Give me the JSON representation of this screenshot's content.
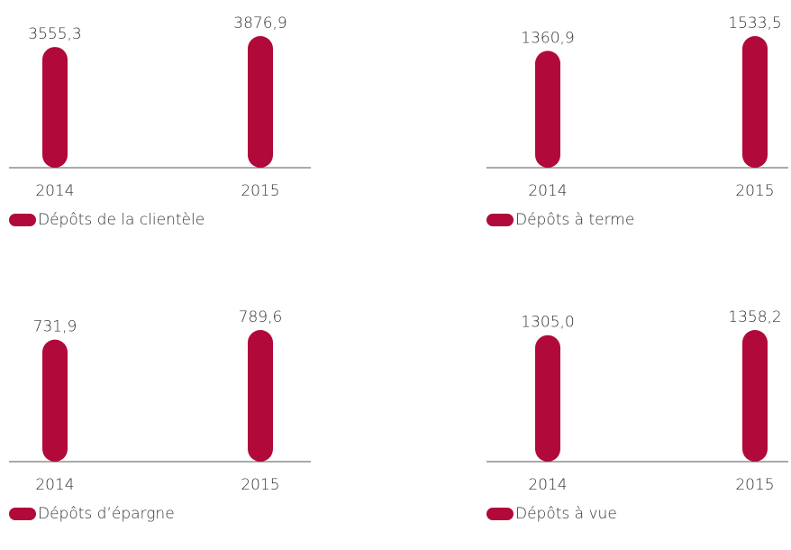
{
  "chart_data": [
    {
      "type": "bar",
      "categories": [
        "2014",
        "2015"
      ],
      "series": [
        {
          "name": "Dépôts de la clientèle",
          "color": "#b0093a",
          "values": [
            3555.3,
            3876.9
          ],
          "value_labels": [
            "3555,3",
            "3876,9"
          ]
        }
      ]
    },
    {
      "type": "bar",
      "categories": [
        "2014",
        "2015"
      ],
      "series": [
        {
          "name": "Dépôts à terme",
          "color": "#b0093a",
          "values": [
            1360.9,
            1533.5
          ],
          "value_labels": [
            "1360,9",
            "1533,5"
          ]
        }
      ]
    },
    {
      "type": "bar",
      "categories": [
        "2014",
        "2015"
      ],
      "series": [
        {
          "name": "Dépôts d’épargne",
          "color": "#b0093a",
          "values": [
            731.9,
            789.6
          ],
          "value_labels": [
            "731,9",
            "789,6"
          ]
        }
      ]
    },
    {
      "type": "bar",
      "categories": [
        "2014",
        "2015"
      ],
      "series": [
        {
          "name": "Dépôts à vue",
          "color": "#b0093a",
          "values": [
            1305.0,
            1358.2
          ],
          "value_labels": [
            "1305,0",
            "1358,2"
          ]
        }
      ]
    }
  ]
}
